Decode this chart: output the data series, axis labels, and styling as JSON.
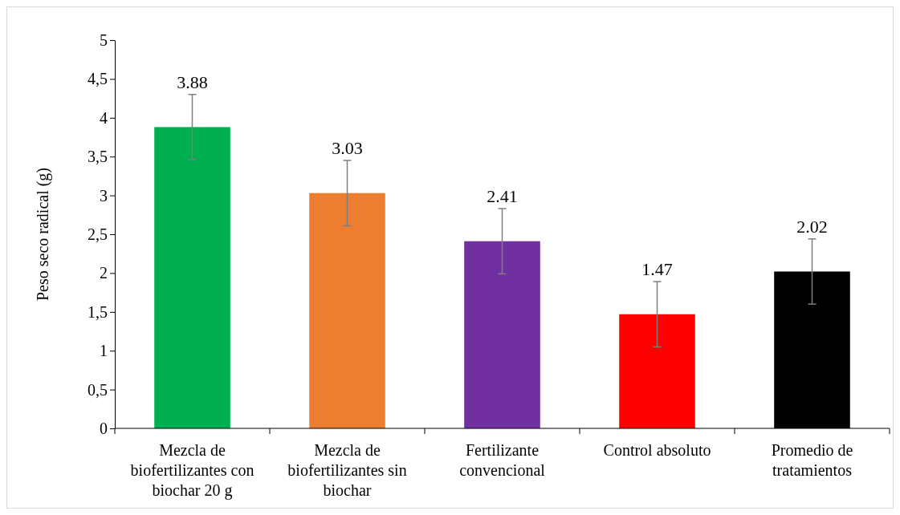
{
  "chart_data": {
    "type": "bar",
    "ylabel": "Peso seco radical (g)",
    "categories": [
      "Mezcla de biofertilizantes con biochar 20 g",
      "Mezcla de biofertilizantes sin biochar",
      "Fertilizante convencional",
      "Control absoluto",
      "Promedio de tratamientos"
    ],
    "values": [
      3.88,
      3.03,
      2.41,
      1.47,
      2.02
    ],
    "colors": [
      "#00b050",
      "#ed7d31",
      "#7030a0",
      "#ff0000",
      "#000000"
    ],
    "errors": [
      0.42,
      0.42,
      0.42,
      0.42,
      0.42
    ],
    "data_labels": true,
    "ylim": [
      0,
      5
    ],
    "yticks": [
      0,
      {
        "value": 0.5,
        "label": "0,5"
      },
      1,
      {
        "value": 1.5,
        "label": "1,5"
      },
      2,
      {
        "value": 2.5,
        "label": "2,5"
      },
      3,
      {
        "value": 3.5,
        "label": "3,5"
      },
      4,
      {
        "value": 4.5,
        "label": "4,5"
      },
      5
    ],
    "grid": false
  }
}
